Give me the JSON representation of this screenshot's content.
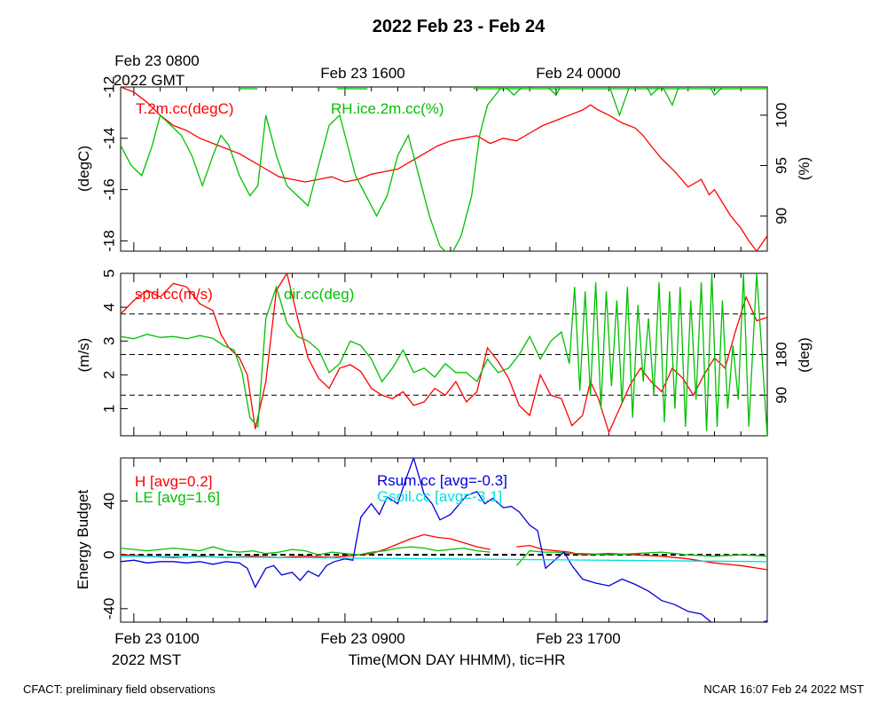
{
  "title": "2022 Feb 23 - Feb 24",
  "top_axis": {
    "first_label_line1": "Feb 23 0800",
    "first_label_line2": "2022 GMT",
    "labels": [
      "Feb 23 1600",
      "Feb 24 0000"
    ]
  },
  "bottom_axis": {
    "first_label_line1": "Feb 23 0100",
    "first_label_line2": "2022 MST",
    "labels": [
      "Feb 23 0900",
      "Feb 23 1700"
    ],
    "xlabel": "Time(MON DAY HHMM), tic=HR"
  },
  "footer": {
    "left": "CFACT: preliminary field observations",
    "right": "NCAR 16:07 Feb 24 2022 MST"
  },
  "colors": {
    "red": "#ff0000",
    "green": "#00c000",
    "blue": "#0000dd",
    "cyan": "#00e0e0",
    "black": "#000000"
  },
  "chart_data": [
    {
      "type": "line",
      "panel": "temperature-humidity",
      "x_unit": "hours since Feb 23 0000 MST",
      "xlim": [
        0.5,
        25.0
      ],
      "y_left": {
        "label": "(degC)",
        "ylim": [
          -18.4,
          -12.0
        ],
        "ticks": [
          -18,
          -16,
          -14,
          -12
        ],
        "tick_labels": [
          "-18",
          "-16",
          "-14",
          "-12"
        ]
      },
      "y_right": {
        "label": "(%)",
        "ylim": [
          86.5,
          102.8
        ],
        "ticks": [
          90,
          95,
          100
        ],
        "tick_labels": [
          "90",
          "95",
          "100"
        ]
      },
      "series": [
        {
          "name": "T.2m.cc(degC)",
          "label": "T.2m.cc(degC)",
          "color": "#ff0000",
          "axis": "left",
          "x": [
            0.5,
            1.0,
            1.5,
            2.0,
            2.5,
            3.0,
            3.5,
            4.0,
            4.5,
            5.0,
            5.5,
            6.0,
            6.5,
            7.0,
            7.5,
            8.0,
            8.5,
            9.0,
            9.5,
            10.0,
            10.5,
            11.0,
            11.5,
            12.0,
            12.5,
            13.0,
            13.5,
            14.0,
            14.5,
            15.0,
            15.5,
            16.0,
            16.5,
            17.0,
            17.5,
            18.0,
            18.3,
            18.6,
            19.0,
            19.5,
            20.0,
            20.3,
            20.6,
            21.0,
            21.5,
            22.0,
            22.5,
            22.8,
            23.0,
            23.3,
            23.6,
            24.0,
            24.3,
            24.6,
            25.0
          ],
          "values": [
            -12.0,
            -12.2,
            -12.6,
            -13.1,
            -13.5,
            -13.7,
            -14.0,
            -14.2,
            -14.4,
            -14.6,
            -14.9,
            -15.2,
            -15.5,
            -15.6,
            -15.7,
            -15.6,
            -15.5,
            -15.7,
            -15.6,
            -15.4,
            -15.3,
            -15.2,
            -14.9,
            -14.6,
            -14.3,
            -14.1,
            -14.0,
            -13.9,
            -14.2,
            -14.0,
            -14.1,
            -13.8,
            -13.5,
            -13.3,
            -13.1,
            -12.9,
            -12.7,
            -12.9,
            -13.1,
            -13.4,
            -13.6,
            -13.9,
            -14.3,
            -14.8,
            -15.3,
            -15.9,
            -15.6,
            -16.2,
            -16.0,
            -16.5,
            -17.0,
            -17.5,
            -18.0,
            -18.4,
            -17.8
          ]
        },
        {
          "name": "RH.ice.2m.cc(%)",
          "label": "RH.ice.2m.cc(%)",
          "color": "#00c000",
          "axis": "right",
          "x": [
            0.5,
            0.9,
            1.3,
            1.7,
            2.0,
            2.4,
            2.8,
            3.2,
            3.6,
            4.0,
            4.3,
            4.6,
            5.0,
            5.4,
            5.7,
            6.0,
            6.4,
            6.8,
            7.2,
            7.6,
            8.0,
            8.4,
            8.8,
            9.0,
            9.4,
            9.8,
            10.2,
            10.6,
            11.0,
            11.4,
            11.8,
            12.2,
            12.6,
            13.0,
            13.4,
            13.8,
            14.1,
            14.4,
            14.7,
            15.0,
            15.4,
            15.8,
            16.2,
            16.6,
            17.0,
            17.4,
            17.8,
            18.2,
            18.6,
            19.0,
            19.4,
            19.8,
            20.2,
            20.6,
            21.0,
            21.4,
            21.8,
            22.2,
            22.6,
            23.0,
            23.4,
            23.8,
            24.2,
            24.6,
            25.0
          ],
          "values": [
            97,
            95,
            94,
            97,
            100,
            99,
            98,
            96,
            93,
            96,
            98,
            97,
            94,
            92,
            93,
            100,
            96,
            93,
            92,
            91,
            95,
            99,
            100,
            98,
            94,
            92,
            90,
            92,
            96,
            98,
            94,
            90,
            87,
            86,
            88,
            92,
            98,
            101,
            102,
            103,
            102,
            103,
            104,
            103,
            102,
            104,
            103,
            105,
            104,
            103,
            100,
            103,
            104,
            102,
            103,
            101,
            104,
            105,
            104,
            102,
            103,
            104,
            105,
            103,
            104
          ]
        }
      ],
      "saturation_marker": {
        "y": 102.8,
        "color": "#00c000",
        "x_ranges": [
          [
            4.95,
            5.65
          ],
          [
            8.7,
            9.8
          ],
          [
            13.85,
            25.0
          ]
        ]
      }
    },
    {
      "type": "line",
      "panel": "wind",
      "x_unit": "hours since Feb 23 0000 MST",
      "xlim": [
        0.5,
        25.0
      ],
      "y_left": {
        "label": "(m/s)",
        "ylim": [
          0.2,
          5.0
        ],
        "ticks": [
          1,
          2,
          3,
          4,
          5
        ],
        "tick_labels": [
          "1",
          "2",
          "3",
          "4",
          "5"
        ]
      },
      "y_right": {
        "label": "(deg)",
        "ylim": [
          0,
          360
        ],
        "ticks": [
          90,
          180
        ],
        "tick_labels": [
          "90",
          "180"
        ]
      },
      "reference_lines_deg": [
        90,
        180,
        270
      ],
      "series": [
        {
          "name": "spd.cc(m/s)",
          "label": "spd.cc(m/s)",
          "color": "#ff0000",
          "axis": "left",
          "x": [
            0.5,
            1.0,
            1.5,
            2.0,
            2.5,
            3.0,
            3.5,
            4.0,
            4.3,
            4.6,
            5.0,
            5.3,
            5.6,
            6.0,
            6.4,
            6.8,
            7.2,
            7.6,
            8.0,
            8.4,
            8.8,
            9.2,
            9.6,
            10.0,
            10.4,
            10.8,
            11.2,
            11.6,
            12.0,
            12.4,
            12.8,
            13.2,
            13.6,
            14.0,
            14.4,
            14.8,
            15.2,
            15.6,
            16.0,
            16.4,
            16.8,
            17.2,
            17.6,
            18.0,
            18.3,
            18.6,
            19.0,
            19.4,
            19.8,
            20.2,
            20.6,
            21.0,
            21.4,
            21.8,
            22.2,
            22.6,
            23.0,
            23.4,
            23.8,
            24.2,
            24.6,
            25.0
          ],
          "values": [
            3.8,
            4.2,
            4.5,
            4.3,
            4.7,
            4.6,
            4.1,
            3.9,
            3.2,
            2.8,
            2.5,
            2.0,
            0.4,
            1.8,
            4.5,
            5.0,
            3.7,
            2.5,
            1.9,
            1.6,
            2.2,
            2.3,
            2.1,
            1.6,
            1.4,
            1.3,
            1.5,
            1.1,
            1.2,
            1.6,
            1.4,
            1.8,
            1.2,
            1.5,
            2.8,
            2.4,
            1.9,
            1.1,
            0.8,
            2.0,
            1.4,
            1.3,
            0.5,
            0.8,
            1.8,
            1.3,
            0.3,
            1.0,
            1.7,
            2.2,
            1.8,
            1.5,
            2.2,
            1.9,
            1.4,
            2.0,
            2.5,
            2.2,
            3.3,
            4.3,
            3.6,
            3.7
          ]
        },
        {
          "name": "dir.cc(deg)",
          "label": "dir.cc(deg)",
          "color": "#00c000",
          "axis": "right",
          "x": [
            0.5,
            1.0,
            1.5,
            2.0,
            2.5,
            3.0,
            3.5,
            4.0,
            4.4,
            4.8,
            5.1,
            5.4,
            5.7,
            6.0,
            6.4,
            6.8,
            7.2,
            7.6,
            8.0,
            8.4,
            8.8,
            9.2,
            9.6,
            10.0,
            10.4,
            10.8,
            11.2,
            11.6,
            12.0,
            12.4,
            12.8,
            13.2,
            13.6,
            14.0,
            14.4,
            14.8,
            15.2,
            15.6,
            16.0,
            16.4,
            16.8,
            17.2,
            17.5,
            17.7,
            17.9,
            18.1,
            18.3,
            18.5,
            18.7,
            18.9,
            19.1,
            19.3,
            19.5,
            19.7,
            19.9,
            20.1,
            20.3,
            20.5,
            20.7,
            20.9,
            21.1,
            21.3,
            21.5,
            21.7,
            21.9,
            22.1,
            22.3,
            22.5,
            22.7,
            22.9,
            23.1,
            23.3,
            23.5,
            23.7,
            23.9,
            24.1,
            24.3,
            24.6,
            25.0
          ],
          "values": [
            220,
            215,
            225,
            218,
            220,
            215,
            222,
            216,
            200,
            190,
            140,
            40,
            20,
            260,
            330,
            250,
            220,
            210,
            190,
            140,
            160,
            210,
            200,
            170,
            120,
            150,
            190,
            140,
            150,
            130,
            160,
            140,
            140,
            120,
            170,
            140,
            150,
            180,
            220,
            170,
            210,
            230,
            160,
            330,
            100,
            320,
            90,
            340,
            60,
            320,
            110,
            300,
            70,
            330,
            40,
            290,
            120,
            260,
            90,
            340,
            30,
            320,
            60,
            330,
            20,
            300,
            80,
            340,
            10,
            360,
            20,
            300,
            60,
            200,
            80,
            360,
            20,
            360,
            0
          ]
        }
      ]
    },
    {
      "type": "line",
      "panel": "energy-budget",
      "x_unit": "hours since Feb 23 0000 MST",
      "xlim": [
        0.5,
        25.0
      ],
      "y_left": {
        "label": "Energy Budget",
        "ylim": [
          -50,
          72
        ],
        "ticks": [
          -40,
          0,
          40
        ],
        "tick_labels": [
          "-40",
          "0",
          "40"
        ]
      },
      "zero_line": 0,
      "series": [
        {
          "name": "H",
          "label": "H [avg=0.2]",
          "color": "#ff0000",
          "x": [
            0.5,
            1.5,
            2.5,
            3.5,
            4.5,
            5.5,
            6.5,
            7.5,
            8.5,
            9.0,
            9.5,
            10.0,
            10.5,
            11.0,
            11.5,
            12.0,
            12.5,
            13.0,
            13.5,
            14.0,
            14.5,
            15.0,
            15.5,
            16.0,
            16.5,
            17.0,
            17.5,
            18.0,
            19.0,
            20.0,
            21.0,
            22.0,
            23.0,
            24.0,
            25.0
          ],
          "values": [
            0,
            -1,
            -2,
            -1,
            -2,
            -1,
            -2,
            -1,
            -2,
            -1,
            0,
            1,
            4,
            8,
            12,
            15,
            13,
            12,
            9,
            6,
            4,
            null,
            6,
            7,
            4,
            3,
            2,
            0,
            1,
            0,
            -1,
            -3,
            -6,
            -8,
            -11
          ]
        },
        {
          "name": "LE",
          "label": "LE [avg=1.6]",
          "color": "#00c000",
          "x": [
            0.5,
            1.0,
            1.5,
            2.0,
            2.5,
            3.0,
            3.5,
            4.0,
            4.5,
            5.0,
            5.5,
            6.0,
            6.5,
            7.0,
            7.5,
            8.0,
            8.5,
            9.0,
            9.5,
            10.0,
            10.5,
            11.0,
            11.5,
            12.0,
            12.5,
            13.0,
            13.5,
            14.0,
            14.5,
            15.0,
            15.5,
            16.0,
            16.5,
            17.0,
            17.5,
            18.0,
            19.0,
            20.0,
            21.0,
            22.0,
            23.0,
            24.0,
            25.0
          ],
          "values": [
            5,
            4,
            3,
            4,
            5,
            4,
            3,
            6,
            3,
            2,
            3,
            1,
            2,
            4,
            3,
            0,
            2,
            1,
            0,
            2,
            3,
            5,
            6,
            5,
            3,
            4,
            5,
            3,
            2,
            null,
            -8,
            3,
            2,
            2,
            1,
            1,
            0,
            1,
            2,
            0,
            -1,
            0,
            -1
          ]
        },
        {
          "name": "Rsum.cc",
          "label": "Rsum.cc [avg=-0.3]",
          "color": "#0000dd",
          "x": [
            0.5,
            1.0,
            1.5,
            2.0,
            2.5,
            3.0,
            3.5,
            4.0,
            4.5,
            5.0,
            5.3,
            5.6,
            6.0,
            6.3,
            6.6,
            7.0,
            7.3,
            7.6,
            8.0,
            8.3,
            8.6,
            9.0,
            9.3,
            9.6,
            10.0,
            10.3,
            10.6,
            11.0,
            11.3,
            11.6,
            12.0,
            12.3,
            12.6,
            13.0,
            13.3,
            13.6,
            14.0,
            14.3,
            14.6,
            15.0,
            15.3,
            15.6,
            16.0,
            16.3,
            16.6,
            17.0,
            17.3,
            17.6,
            18.0,
            18.5,
            19.0,
            19.5,
            20.0,
            20.5,
            21.0,
            21.5,
            22.0,
            22.5,
            23.0,
            23.5,
            24.0,
            24.5,
            25.0
          ],
          "values": [
            -5,
            -4,
            -6,
            -5,
            -5,
            -6,
            -5,
            -7,
            -5,
            -6,
            -10,
            -24,
            -10,
            -8,
            -15,
            -13,
            -19,
            -12,
            -16,
            -8,
            -5,
            -3,
            -4,
            28,
            38,
            30,
            43,
            38,
            56,
            72,
            45,
            38,
            26,
            30,
            37,
            44,
            47,
            38,
            42,
            35,
            36,
            32,
            22,
            18,
            -10,
            -3,
            2,
            -8,
            -18,
            -21,
            -23,
            -18,
            -22,
            -27,
            -34,
            -37,
            -42,
            -44,
            -52,
            -53,
            -55,
            -52,
            -49
          ]
        },
        {
          "name": "Gsoil.cc",
          "label": "Gsoil.cc [avg=-3.1]",
          "color": "#00e0e0",
          "x": [
            0.5,
            25.0
          ],
          "values": [
            -1,
            -5
          ]
        }
      ]
    }
  ]
}
